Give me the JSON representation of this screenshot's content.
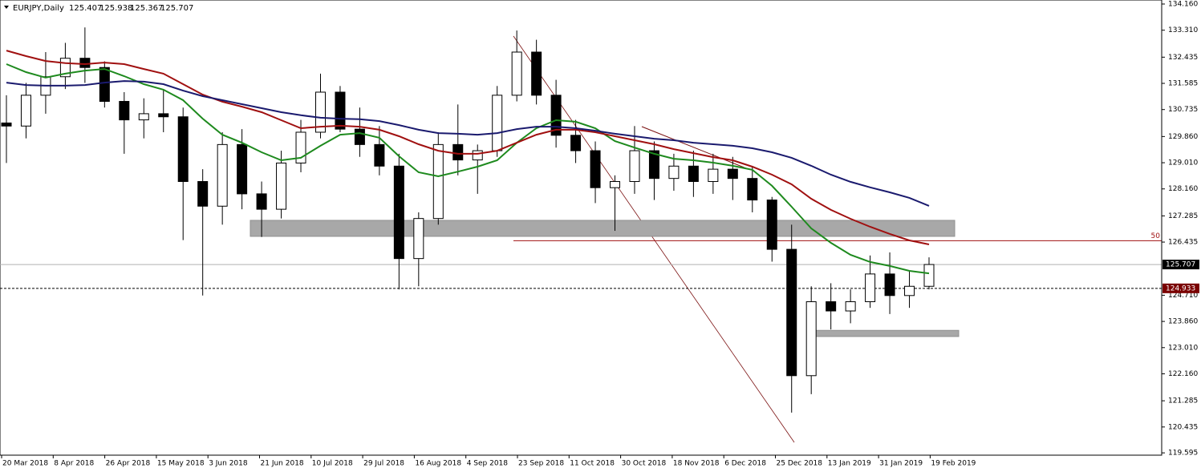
{
  "chart_data": {
    "type": "candlestick",
    "title": "EURJPY,Daily",
    "header_ohlc": [
      125.407,
      125.938,
      125.367,
      125.707
    ],
    "ylim": [
      119.52,
      134.29
    ],
    "yticks": [
      {
        "value": 134.16,
        "label": "134.160"
      },
      {
        "value": 133.31,
        "label": "133.310"
      },
      132.435,
      131.585,
      130.735,
      {
        "value": 129.86,
        "label": "129.860"
      },
      {
        "value": 129.01,
        "label": "129.010"
      },
      {
        "value": 128.16,
        "label": "128.160"
      },
      127.285,
      126.435,
      {
        "value": 124.71,
        "label": "124.710"
      },
      {
        "value": 123.86,
        "label": "123.860"
      },
      {
        "value": 123.01,
        "label": "123.010"
      },
      {
        "value": 122.16,
        "label": "122.160"
      },
      121.285,
      120.435,
      119.595
    ],
    "xticks": [
      "20 Mar 2018",
      "8 Apr 2018",
      "26 Apr 2018",
      "15 May 2018",
      "3 Jun 2018",
      "21 Jun 2018",
      "10 Jul 2018",
      "29 Jul 2018",
      "16 Aug 2018",
      "4 Sep 2018",
      "23 Sep 2018",
      "11 Oct 2018",
      "30 Oct 2018",
      "18 Nov 2018",
      "6 Dec 2018",
      "25 Dec 2018",
      "13 Jan 2019",
      "31 Jan 2019",
      "19 Feb 2019"
    ],
    "candles": [
      [
        130.3,
        131.2,
        129.0,
        130.2
      ],
      [
        130.2,
        131.6,
        129.8,
        131.2
      ],
      [
        131.2,
        132.6,
        130.6,
        131.8
      ],
      [
        131.8,
        132.9,
        131.4,
        132.4
      ],
      [
        132.4,
        133.4,
        131.6,
        132.1
      ],
      [
        132.1,
        132.3,
        130.8,
        131.0
      ],
      [
        131.0,
        131.3,
        129.3,
        130.4
      ],
      [
        130.4,
        131.1,
        129.8,
        130.6
      ],
      [
        130.6,
        131.4,
        130.0,
        130.5
      ],
      [
        130.5,
        130.8,
        126.5,
        128.4
      ],
      [
        128.4,
        128.8,
        124.7,
        127.6
      ],
      [
        127.6,
        130.0,
        127.0,
        129.6
      ],
      [
        129.6,
        130.1,
        127.5,
        128.0
      ],
      [
        128.0,
        128.4,
        126.6,
        127.5
      ],
      [
        127.5,
        129.4,
        127.2,
        129.0
      ],
      [
        129.0,
        130.4,
        128.7,
        130.0
      ],
      [
        130.0,
        131.9,
        129.8,
        131.3
      ],
      [
        131.3,
        131.5,
        130.0,
        130.1
      ],
      [
        130.1,
        130.8,
        129.2,
        129.6
      ],
      [
        129.6,
        130.2,
        128.6,
        128.9
      ],
      [
        128.9,
        129.3,
        124.9,
        125.9
      ],
      [
        125.9,
        127.4,
        125.0,
        127.2
      ],
      [
        127.2,
        130.0,
        127.0,
        129.6
      ],
      [
        129.6,
        130.9,
        128.6,
        129.1
      ],
      [
        129.1,
        129.6,
        128.0,
        129.4
      ],
      [
        129.4,
        131.5,
        129.2,
        131.2
      ],
      [
        131.2,
        133.3,
        131.0,
        132.6
      ],
      [
        132.6,
        133.0,
        130.9,
        131.2
      ],
      [
        131.2,
        131.7,
        129.5,
        129.9
      ],
      [
        129.9,
        130.4,
        129.0,
        129.4
      ],
      [
        129.4,
        129.7,
        127.7,
        128.2
      ],
      [
        128.2,
        128.6,
        126.8,
        128.4
      ],
      [
        128.4,
        130.2,
        128.0,
        129.4
      ],
      [
        129.4,
        129.7,
        127.8,
        128.5
      ],
      [
        128.5,
        129.3,
        128.1,
        128.9
      ],
      [
        128.9,
        129.4,
        127.9,
        128.4
      ],
      [
        128.4,
        129.3,
        128.0,
        128.8
      ],
      [
        128.8,
        129.2,
        127.8,
        128.5
      ],
      [
        128.5,
        128.9,
        127.4,
        127.8
      ],
      [
        127.8,
        127.9,
        125.8,
        126.2
      ],
      [
        126.2,
        127.0,
        120.9,
        122.1
      ],
      [
        122.1,
        125.0,
        121.5,
        124.5
      ],
      [
        124.5,
        125.1,
        123.6,
        124.2
      ],
      [
        124.2,
        124.9,
        123.8,
        124.5
      ],
      [
        124.5,
        126.0,
        124.3,
        125.4
      ],
      [
        125.4,
        126.1,
        124.1,
        124.7
      ],
      [
        124.7,
        125.5,
        124.3,
        125.0
      ],
      [
        125.0,
        125.938,
        124.9,
        125.707
      ]
    ],
    "series": [
      {
        "color": "#1e8a1e",
        "values": [
          132.21,
          131.95,
          131.77,
          131.9,
          132.0,
          132.05,
          131.82,
          131.56,
          131.38,
          131.04,
          130.44,
          129.92,
          129.66,
          129.35,
          129.09,
          129.17,
          129.56,
          129.92,
          129.97,
          129.82,
          129.22,
          128.7,
          128.57,
          128.72,
          128.88,
          129.09,
          129.66,
          130.13,
          130.39,
          130.34,
          130.13,
          129.71,
          129.5,
          129.3,
          129.14,
          129.09,
          129.01,
          128.91,
          128.78,
          128.26,
          127.58,
          126.88,
          126.41,
          126.02,
          125.79,
          125.66,
          125.5,
          125.42
        ]
      },
      {
        "color": "#a01010",
        "values": [
          132.65,
          132.47,
          132.31,
          132.24,
          132.21,
          132.26,
          132.21,
          132.05,
          131.9,
          131.56,
          131.22,
          130.99,
          130.83,
          130.65,
          130.39,
          130.13,
          130.18,
          130.21,
          130.18,
          130.08,
          129.87,
          129.61,
          129.4,
          129.3,
          129.3,
          129.4,
          129.66,
          129.92,
          130.08,
          130.08,
          130.0,
          129.87,
          129.74,
          129.61,
          129.45,
          129.32,
          129.19,
          129.09,
          128.88,
          128.62,
          128.31,
          127.84,
          127.48,
          127.19,
          126.93,
          126.7,
          126.49,
          126.36
        ]
      },
      {
        "color": "#1a1a6e",
        "values": [
          131.61,
          131.53,
          131.51,
          131.51,
          131.53,
          131.61,
          131.66,
          131.64,
          131.56,
          131.35,
          131.17,
          131.04,
          130.91,
          130.78,
          130.65,
          130.55,
          130.47,
          130.44,
          130.42,
          130.36,
          130.23,
          130.08,
          129.97,
          129.95,
          129.92,
          129.97,
          130.1,
          130.18,
          130.18,
          130.13,
          130.05,
          129.95,
          129.87,
          129.79,
          129.74,
          129.66,
          129.61,
          129.56,
          129.48,
          129.35,
          129.17,
          128.91,
          128.62,
          128.39,
          128.21,
          128.05,
          127.87,
          127.61
        ]
      }
    ],
    "zones": [
      {
        "top": 127.14,
        "bottom": 126.62
      },
      {
        "top": 123.57,
        "bottom": 123.37
      }
    ],
    "fib_level": 50,
    "fib_price": 126.48,
    "current_price": 125.707,
    "level_price": 124.933
  }
}
